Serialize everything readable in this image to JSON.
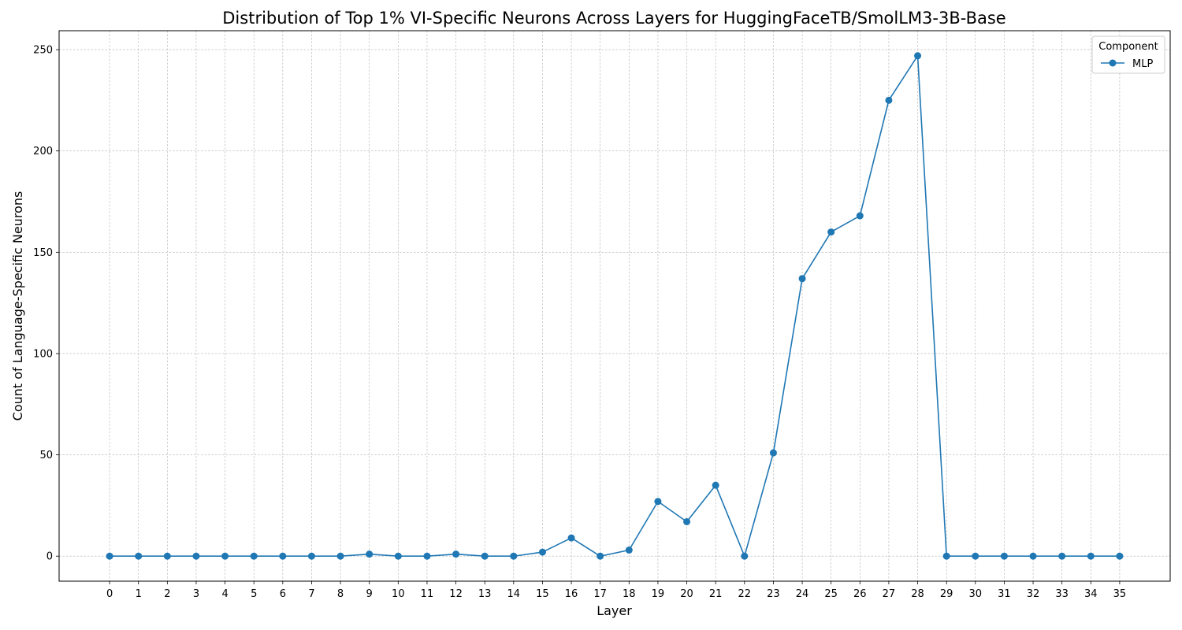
{
  "chart_data": {
    "type": "line",
    "title": "Distribution of Top 1% VI-Specific Neurons Across Layers for HuggingFaceTB/SmolLM3-3B-Base",
    "xlabel": "Layer",
    "ylabel": "Count of Language-Specific Neurons",
    "x": [
      0,
      1,
      2,
      3,
      4,
      5,
      6,
      7,
      8,
      9,
      10,
      11,
      12,
      13,
      14,
      15,
      16,
      17,
      18,
      19,
      20,
      21,
      22,
      23,
      24,
      25,
      26,
      27,
      28,
      29,
      30,
      31,
      32,
      33,
      34,
      35
    ],
    "xticks": [
      "0",
      "1",
      "2",
      "3",
      "4",
      "5",
      "6",
      "7",
      "8",
      "9",
      "10",
      "11",
      "12",
      "13",
      "14",
      "15",
      "16",
      "17",
      "18",
      "19",
      "20",
      "21",
      "22",
      "23",
      "24",
      "25",
      "26",
      "27",
      "28",
      "29",
      "30",
      "31",
      "32",
      "33",
      "34",
      "35"
    ],
    "yticks": [
      0,
      50,
      100,
      150,
      200,
      250
    ],
    "xlim": [
      -1.75,
      36.75
    ],
    "ylim": [
      -12.35,
      259.35
    ],
    "grid": true,
    "legend": {
      "title": "Component",
      "position": "top-right"
    },
    "series": [
      {
        "name": "MLP",
        "color": "#1f77b4",
        "marker": "circle",
        "values": [
          0,
          0,
          0,
          0,
          0,
          0,
          0,
          0,
          0,
          1,
          0,
          0,
          1,
          0,
          0,
          2,
          9,
          0,
          3,
          27,
          17,
          35,
          0,
          51,
          137,
          160,
          168,
          225,
          247,
          0,
          0,
          0,
          0,
          0,
          0,
          0
        ]
      }
    ]
  }
}
